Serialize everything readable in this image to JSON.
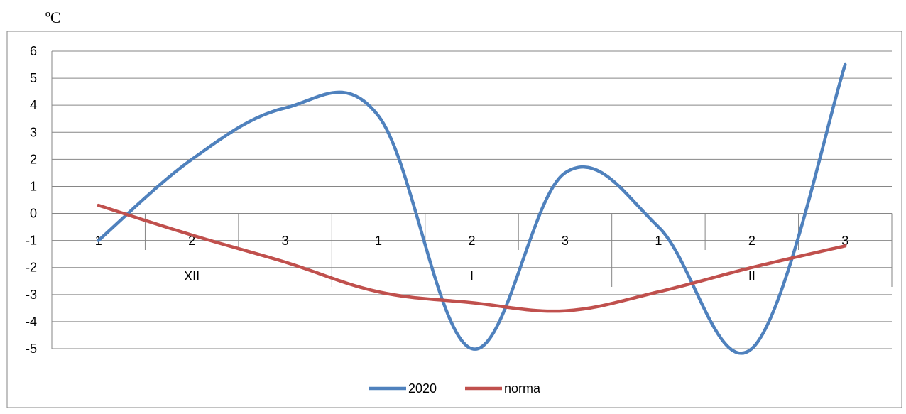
{
  "chart_data": {
    "type": "line",
    "unit_label": "ºC",
    "categories": [
      "1",
      "2",
      "3",
      "1",
      "2",
      "3",
      "1",
      "2",
      "3"
    ],
    "groups": [
      {
        "label": "XII",
        "categories": [
          "1",
          "2",
          "3"
        ]
      },
      {
        "label": "I",
        "categories": [
          "1",
          "2",
          "3"
        ]
      },
      {
        "label": "II",
        "categories": [
          "1",
          "2",
          "3"
        ]
      }
    ],
    "series": [
      {
        "name": "2020",
        "color": "#4f81bd",
        "values": [
          -1,
          2,
          3.9,
          3.6,
          -5,
          1.5,
          -0.5,
          -5,
          5.5
        ]
      },
      {
        "name": "norma",
        "color": "#c0504d",
        "values": [
          0.3,
          -0.8,
          -1.8,
          -2.9,
          -3.3,
          -3.6,
          -2.9,
          -2,
          -1.2
        ]
      }
    ],
    "y_ticks": [
      "6",
      "5",
      "4",
      "3",
      "2",
      "1",
      "0",
      "-1",
      "-2",
      "-3",
      "-4",
      "-5"
    ],
    "ylim": [
      -5,
      6
    ],
    "grid": true,
    "legend_position": "bottom"
  }
}
